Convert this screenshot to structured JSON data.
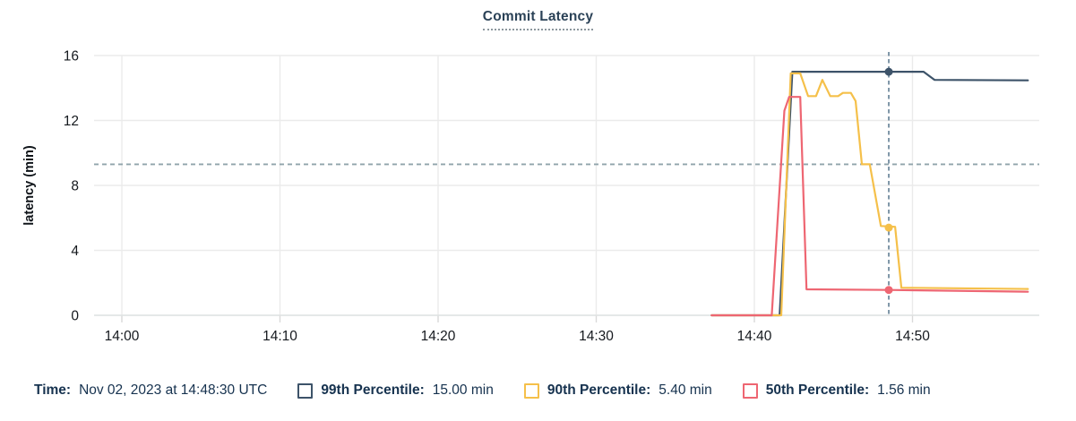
{
  "header": {
    "title": "Commit Latency"
  },
  "chart_data": {
    "type": "line",
    "title": "Commit Latency",
    "xlabel": "",
    "ylabel": "latency (min)",
    "ylim": [
      0,
      16
    ],
    "yticks": [
      0,
      4,
      8,
      12,
      16
    ],
    "xticks": [
      {
        "label": "14:00",
        "min": 0
      },
      {
        "label": "14:10",
        "min": 10
      },
      {
        "label": "14:20",
        "min": 20
      },
      {
        "label": "14:30",
        "min": 30
      },
      {
        "label": "14:40",
        "min": 40
      },
      {
        "label": "14:50",
        "min": 50
      }
    ],
    "x_domain_minutes": [
      -1.8,
      57.35
    ],
    "grid": true,
    "legend_position": "bottom",
    "threshold_line": {
      "value": 9.3,
      "style": "dashed",
      "color": "#90a4ab"
    },
    "cursor": {
      "time_min": 48.5,
      "time_label": "Nov 02, 2023 at 14:48:30 UTC",
      "color": "#607d93"
    },
    "series": [
      {
        "name": "99th Percentile",
        "color": "#3d5369",
        "cursor_value": 15.0,
        "cursor_value_label": "15.00 min",
        "points": [
          [
            37.3,
            0
          ],
          [
            41.6,
            0
          ],
          [
            42.4,
            15.0
          ],
          [
            50.7,
            15.0
          ],
          [
            51.4,
            14.5
          ],
          [
            57.3,
            14.47
          ]
        ]
      },
      {
        "name": "90th Percentile",
        "color": "#f5c04a",
        "cursor_value": 5.4,
        "cursor_value_label": "5.40 min",
        "points": [
          [
            37.3,
            0
          ],
          [
            41.7,
            0
          ],
          [
            42.3,
            14.9
          ],
          [
            42.9,
            14.9
          ],
          [
            43.4,
            13.5
          ],
          [
            43.9,
            13.5
          ],
          [
            44.3,
            14.5
          ],
          [
            44.8,
            13.5
          ],
          [
            45.3,
            13.5
          ],
          [
            45.6,
            13.7
          ],
          [
            46.1,
            13.7
          ],
          [
            46.4,
            13.2
          ],
          [
            46.8,
            9.3
          ],
          [
            47.3,
            9.3
          ],
          [
            48.0,
            5.5
          ],
          [
            48.9,
            5.45
          ],
          [
            49.3,
            1.7
          ],
          [
            57.3,
            1.62
          ]
        ]
      },
      {
        "name": "50th Percentile",
        "color": "#ee6672",
        "cursor_value": 1.56,
        "cursor_value_label": "1.56 min",
        "points": [
          [
            37.3,
            0
          ],
          [
            41.1,
            0
          ],
          [
            41.9,
            12.6
          ],
          [
            42.2,
            13.45
          ],
          [
            42.9,
            13.45
          ],
          [
            43.3,
            1.6
          ],
          [
            48.5,
            1.56
          ],
          [
            57.3,
            1.45
          ]
        ]
      }
    ]
  },
  "legend": {
    "time_label": "Time:",
    "time_value": "Nov 02, 2023 at 14:48:30 UTC",
    "items": [
      {
        "label": "99th Percentile:",
        "value": "15.00 min",
        "color": "#3d5369"
      },
      {
        "label": "90th Percentile:",
        "value": "5.40 min",
        "color": "#f5c04a"
      },
      {
        "label": "50th Percentile:",
        "value": "1.56 min",
        "color": "#ee6672"
      }
    ]
  }
}
